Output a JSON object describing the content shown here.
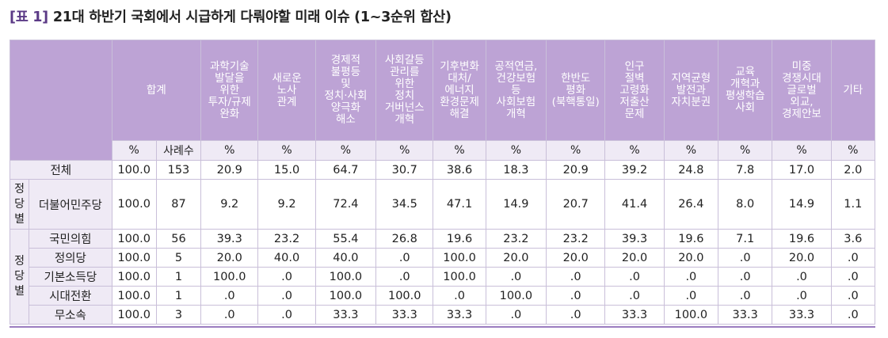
{
  "title": {
    "tag": "[표 1]",
    "text": "21대 하반기 국회에서 시급하게 다뤄야할 미래 이슈 (1~3순위 합산)"
  },
  "columns": [
    {
      "label": "합계",
      "unit": "%"
    },
    {
      "label": "",
      "unit": "사례수"
    },
    {
      "label": "과학기술\n발달을\n위한\n투자/규제\n완화",
      "unit": "%"
    },
    {
      "label": "새로운\n노사\n관계",
      "unit": "%"
    },
    {
      "label": "경제적\n불평등\n및\n정치·사회\n양극화\n해소",
      "unit": "%"
    },
    {
      "label": "사회갈등\n관리를\n위한\n정치\n거버넌스\n개혁",
      "unit": "%"
    },
    {
      "label": "기후변화\n대처/\n에너지\n환경문제\n해결",
      "unit": "%"
    },
    {
      "label": "공적연금,\n건강보험\n등\n사회보험\n개혁",
      "unit": "%"
    },
    {
      "label": "한반도\n평화\n(북핵통일)",
      "unit": "%"
    },
    {
      "label": "인구\n절벽\n고령화\n저출산\n문제",
      "unit": "%"
    },
    {
      "label": "지역균형\n발전과\n자치분권",
      "unit": "%"
    },
    {
      "label": "교육\n개혁과\n평생학습\n사회",
      "unit": "%"
    },
    {
      "label": "미중\n경쟁시대\n글로벌\n외교,\n경제안보",
      "unit": "%"
    },
    {
      "label": "기타",
      "unit": "%"
    }
  ],
  "total_row": {
    "label": "전체",
    "values": [
      "100.0",
      "153",
      "20.9",
      "15.0",
      "64.7",
      "30.7",
      "38.6",
      "18.3",
      "20.9",
      "39.2",
      "24.8",
      "7.8",
      "17.0",
      "2.0"
    ]
  },
  "group1": {
    "label": "정\n당\n별",
    "rows": [
      {
        "label": "더불어민주당",
        "values": [
          "100.0",
          "87",
          "9.2",
          "9.2",
          "72.4",
          "34.5",
          "47.1",
          "14.9",
          "20.7",
          "41.4",
          "26.4",
          "8.0",
          "14.9",
          "1.1"
        ]
      }
    ]
  },
  "group2": {
    "label": "정\n당\n별",
    "rows": [
      {
        "label": "국민의힘",
        "values": [
          "100.0",
          "56",
          "39.3",
          "23.2",
          "55.4",
          "26.8",
          "19.6",
          "23.2",
          "23.2",
          "39.3",
          "19.6",
          "7.1",
          "19.6",
          "3.6"
        ]
      },
      {
        "label": "정의당",
        "values": [
          "100.0",
          "5",
          "20.0",
          "40.0",
          "40.0",
          ".0",
          "100.0",
          "20.0",
          "20.0",
          "20.0",
          "20.0",
          ".0",
          "20.0",
          ".0"
        ]
      },
      {
        "label": "기본소득당",
        "values": [
          "100.0",
          "1",
          "100.0",
          ".0",
          "100.0",
          ".0",
          "100.0",
          ".0",
          ".0",
          ".0",
          ".0",
          ".0",
          ".0",
          ".0"
        ]
      },
      {
        "label": "시대전환",
        "values": [
          "100.0",
          "1",
          ".0",
          ".0",
          "100.0",
          "100.0",
          ".0",
          "100.0",
          ".0",
          ".0",
          ".0",
          ".0",
          ".0",
          ".0"
        ]
      },
      {
        "label": "무소속",
        "values": [
          "100.0",
          "3",
          ".0",
          ".0",
          "33.3",
          "33.3",
          "33.3",
          ".0",
          ".0",
          "33.3",
          "100.0",
          "33.3",
          "33.3",
          ".0"
        ]
      }
    ]
  },
  "colors": {
    "header_bg": "#bda3d5",
    "label_bg": "#efeaf5",
    "border": "#c9bfd9",
    "title_tag": "#5b3a86"
  }
}
